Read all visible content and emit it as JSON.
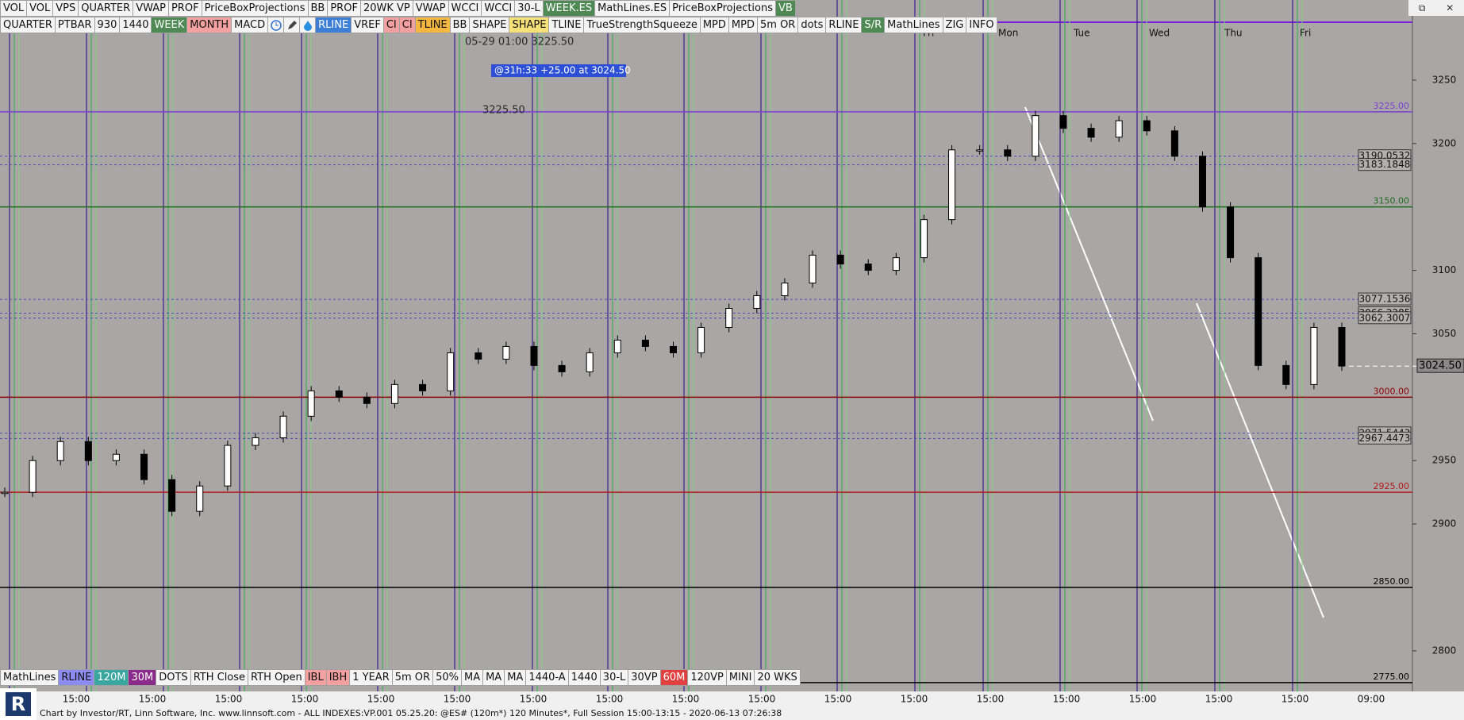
{
  "toolbar_top": [
    {
      "label": "VOL"
    },
    {
      "label": "VOL"
    },
    {
      "label": "VPS"
    },
    {
      "label": "QUARTER"
    },
    {
      "label": "VWAP"
    },
    {
      "label": "PROF"
    },
    {
      "label": "PriceBoxProjections"
    },
    {
      "label": "BB"
    },
    {
      "label": "PROF"
    },
    {
      "label": "20WK VP"
    },
    {
      "label": "VWAP"
    },
    {
      "label": "WCCI"
    },
    {
      "label": "WCCI"
    },
    {
      "label": "30-L"
    },
    {
      "label": "WEEK.ES",
      "color": "#4f8a55"
    },
    {
      "label": "MathLines.ES"
    },
    {
      "label": "PriceBoxProjections"
    },
    {
      "label": "VB",
      "color": "#4f8a55"
    }
  ],
  "toolbar_second": {
    "left": [
      {
        "label": "QUARTER"
      },
      {
        "label": "PTBAR"
      },
      {
        "label": "930"
      },
      {
        "label": "1440"
      },
      {
        "label": "WEEK",
        "color": "#4f8a55"
      },
      {
        "label": "MONTH",
        "color": "#f2a0a0"
      },
      {
        "label": "MACD"
      }
    ],
    "right": [
      {
        "label": "RLINE",
        "color": "#3d7fd6"
      },
      {
        "label": "VREF"
      },
      {
        "label": "CI",
        "color": "#f2a0a0"
      },
      {
        "label": "CI",
        "color": "#f2a0a0"
      },
      {
        "label": "TLINE",
        "color": "#f5b742"
      },
      {
        "label": "BB"
      },
      {
        "label": "SHAPE"
      },
      {
        "label": "SHAPE",
        "color": "#f5e07a"
      },
      {
        "label": "TLINE"
      },
      {
        "label": "TrueStrengthSqueeze"
      },
      {
        "label": "MPD"
      },
      {
        "label": "MPD"
      },
      {
        "label": "5m OR"
      },
      {
        "label": "dots"
      },
      {
        "label": "RLINE"
      },
      {
        "label": "S/R",
        "color": "#4f8a55"
      },
      {
        "label": "MathLines"
      },
      {
        "label": "ZIG"
      },
      {
        "label": "INFO"
      }
    ]
  },
  "toolbar_bottom": [
    {
      "label": "MathLines"
    },
    {
      "label": "RLINE",
      "color": "#8c8cf0"
    },
    {
      "label": "120M",
      "color": "#3aa6a0"
    },
    {
      "label": "30M",
      "color": "#8a2a8a"
    },
    {
      "label": "DOTS"
    },
    {
      "label": "RTH Close"
    },
    {
      "label": "RTH Open"
    },
    {
      "label": "IBL",
      "color": "#f2a0a0"
    },
    {
      "label": "IBH",
      "color": "#f2a0a0"
    },
    {
      "label": "1 YEAR"
    },
    {
      "label": "5m OR"
    },
    {
      "label": "50%"
    },
    {
      "label": "MA"
    },
    {
      "label": "MA"
    },
    {
      "label": "MA"
    },
    {
      "label": "1440-A"
    },
    {
      "label": "1440"
    },
    {
      "label": "30-L"
    },
    {
      "label": "30VP"
    },
    {
      "label": "60M",
      "color": "#e04040"
    },
    {
      "label": "120VP"
    },
    {
      "label": "MINI"
    },
    {
      "label": "20 WKS"
    }
  ],
  "chart": {
    "type": "candlestick",
    "ylim": [
      2768,
      3285
    ],
    "yticks": [
      3250,
      3200,
      3100,
      3050,
      2950,
      2900,
      2800
    ],
    "levels": [
      {
        "value": 3225,
        "label": "3225.00",
        "color": "#7b3fd0"
      },
      {
        "value": 3150,
        "label": "3150.00",
        "color": "#1e6b1e"
      },
      {
        "value": 3000,
        "label": "3000.00",
        "color": "#8b0000"
      },
      {
        "value": 2925,
        "label": "2925.00",
        "color": "#b01818"
      },
      {
        "value": 2850,
        "label": "2850.00",
        "color": "#000000"
      },
      {
        "value": 2775,
        "label": "2775.00",
        "color": "#000000"
      }
    ],
    "boxed_levels": [
      3190.0532,
      3183.1848,
      3077.1536,
      3066.2285,
      3062.3007,
      2971.5443,
      2967.4473
    ],
    "current_price": {
      "value": 3024.5,
      "label": "3024.50"
    },
    "close": [
      2925,
      2950,
      2965,
      2950,
      2955,
      2935,
      2910,
      2930,
      2962,
      2968,
      2985,
      3005,
      3000,
      2995,
      3010,
      3005,
      3035,
      3030,
      3040,
      3025,
      3020,
      3035,
      3045,
      3040,
      3035,
      3055,
      3070,
      3080,
      3090,
      3112,
      3105,
      3100,
      3110,
      3140,
      3195,
      3195,
      3190,
      3222,
      3212,
      3205,
      3218,
      3210,
      3190,
      3150,
      3110,
      3025,
      3010,
      3055,
      3024.5
    ],
    "day_labels": [
      "Fri",
      "Mon",
      "Tue",
      "Wed",
      "Thu",
      "Fri"
    ],
    "time_labels": [
      "15:00",
      "15:00",
      "15:00",
      "15:00",
      "15:00",
      "15:00",
      "15:00",
      "15:00",
      "15:00",
      "15:00",
      "15:00",
      "15:00",
      "15:00",
      "15:00",
      "15:00",
      "15:00",
      "15:00",
      "09:00"
    ],
    "annotations": [
      "05-29 01:00  3225.50",
      "@31h:33  +25.00 at 3024.50",
      "3225.50"
    ]
  },
  "footer": "Chart by Investor/RT, Linn Software, Inc. www.linnsoft.com - ALL INDEXES:VP.001      05.25.20: @ES# (120m*) 120 Minutes*, Full Session 15:00-13:15 - 2020-06-13 07:26:38"
}
